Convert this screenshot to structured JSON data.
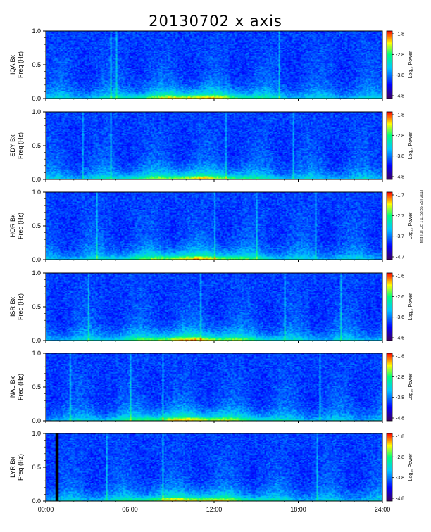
{
  "chart_data": {
    "type": "heatmap",
    "title": "20130702 x axis",
    "x_tick_labels": [
      "00:00",
      "06:00",
      "12:00",
      "18:00",
      "24:00"
    ],
    "x_ticks_hours": [
      0,
      6,
      12,
      18,
      24
    ],
    "xlim_hours": [
      0,
      24
    ],
    "ylim_hz": [
      0.0,
      1.0
    ],
    "y_tick_labels": [
      "0.0",
      "0.5",
      "1.0"
    ],
    "y_ticks": [
      0.0,
      0.5,
      1.0
    ],
    "freq_label": "Freq (Hz)",
    "colorbar_label": "Log₁₀ Power",
    "colormap": [
      "#3b0060",
      "#0000ff",
      "#00c8ff",
      "#00ff7a",
      "#ffff00",
      "#ff0000"
    ],
    "side_stamp": "test Tue Oct 1 11:58:35 EST 2013",
    "panels": [
      {
        "station_label": "IQA Bx",
        "cb_ticks": [
          "-1.8",
          "-2.8",
          "-3.8",
          "-4.8"
        ],
        "spikes_hours": [
          4.6,
          5.0,
          16.6
        ]
      },
      {
        "station_label": "SDY Bx",
        "cb_ticks": [
          "-1.8",
          "-2.8",
          "-3.8",
          "-4.8"
        ],
        "spikes_hours": [
          2.6,
          4.6,
          12.8,
          17.6
        ]
      },
      {
        "station_label": "HOR Bx",
        "cb_ticks": [
          "-1.7",
          "-2.7",
          "-3.7",
          "-4.7"
        ],
        "spikes_hours": [
          3.6,
          12.0,
          15.0,
          19.2
        ]
      },
      {
        "station_label": "ISR Bx",
        "cb_ticks": [
          "-1.6",
          "-2.6",
          "-3.6",
          "-4.6"
        ],
        "spikes_hours": [
          3.0,
          11.0,
          17.0,
          21.0
        ]
      },
      {
        "station_label": "NAL Bx",
        "cb_ticks": [
          "-1.8",
          "-2.8",
          "-3.8",
          "-4.8"
        ],
        "spikes_hours": [
          1.7,
          6.0,
          8.3,
          19.5
        ]
      },
      {
        "station_label": "LYR Bx",
        "cb_ticks": [
          "-1.8",
          "-2.8",
          "-3.8",
          "-4.8"
        ],
        "spikes_hours": [
          4.3,
          8.3,
          19.3
        ],
        "data_gap_hours": [
          0.65,
          0.85
        ]
      }
    ]
  }
}
